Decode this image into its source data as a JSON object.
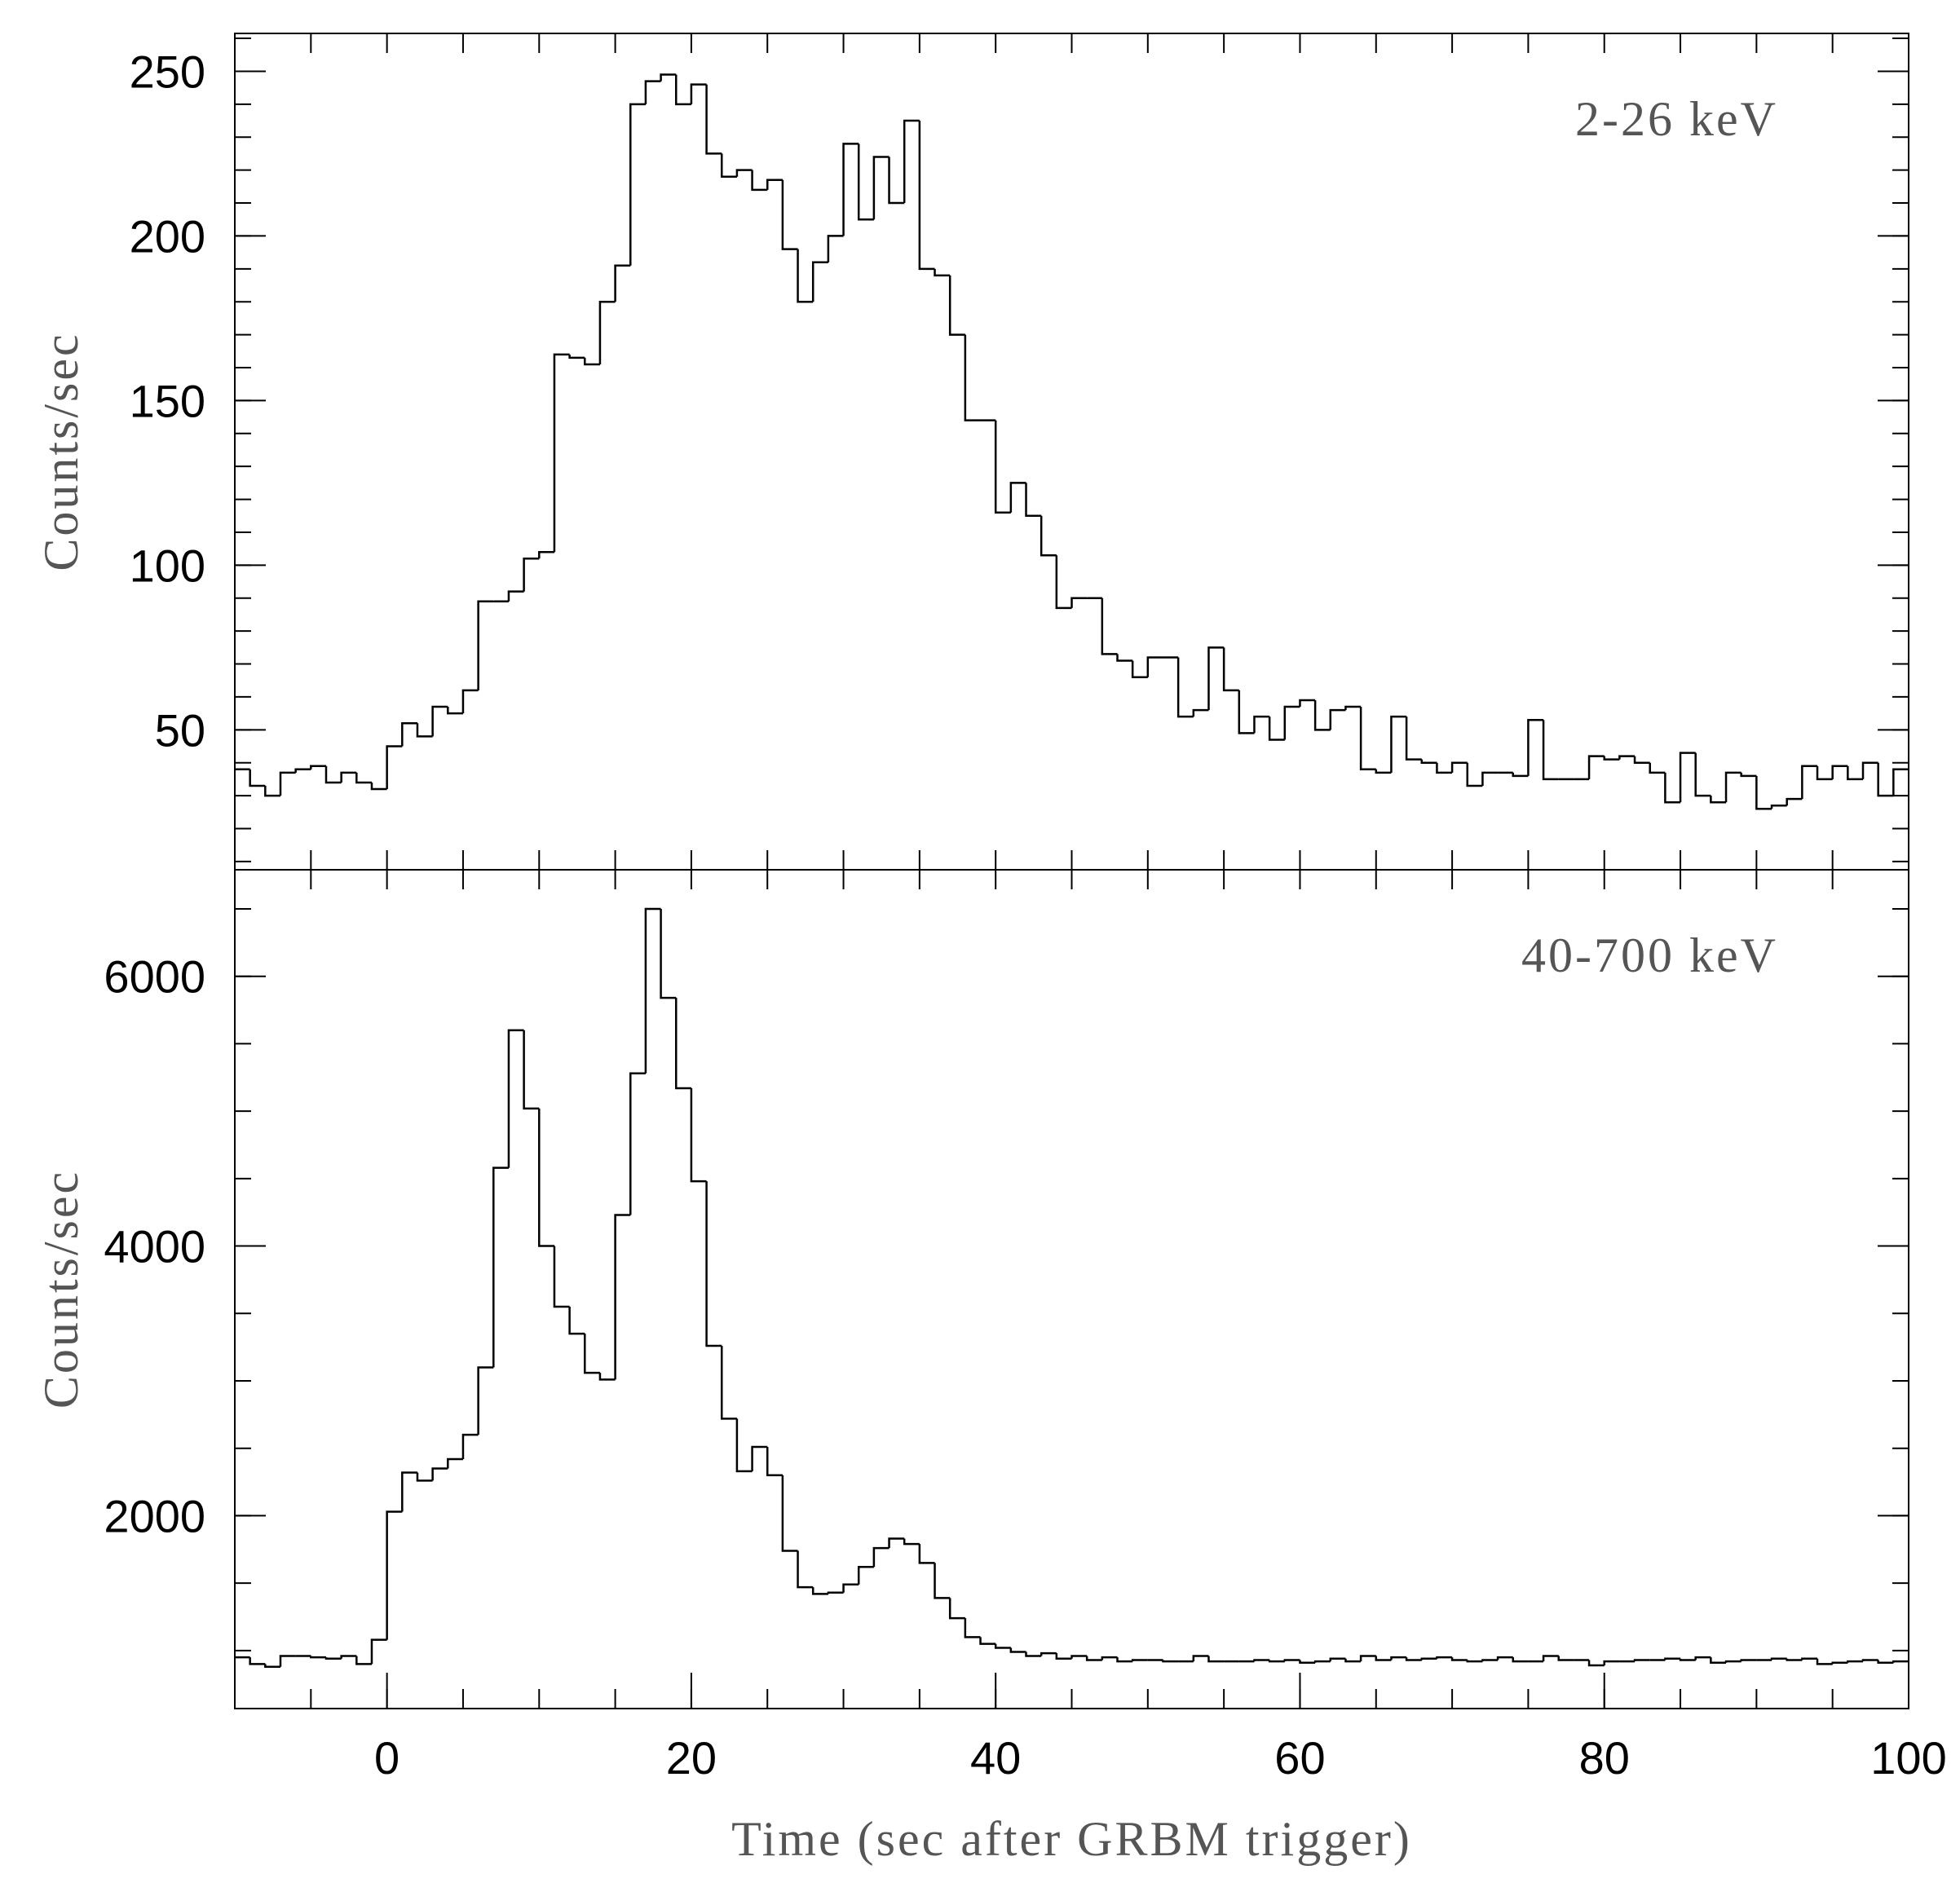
{
  "chart_data": [
    {
      "type": "histogram",
      "annotation": "2-26 keV",
      "ylabel": "Counts/sec",
      "bins": [
        -10,
        -9,
        -8,
        -7,
        -6,
        -5,
        -4,
        -3,
        -2,
        -1,
        0,
        1,
        2,
        3,
        4,
        5,
        6,
        7,
        8,
        9,
        10,
        11,
        12,
        13,
        14,
        15,
        16,
        17,
        18,
        19,
        20,
        21,
        22,
        23,
        24,
        25,
        26,
        27,
        28,
        29,
        30,
        31,
        32,
        33,
        34,
        35,
        36,
        37,
        38,
        39,
        40,
        41,
        42,
        43,
        44,
        45,
        46,
        47,
        48,
        49,
        50,
        51,
        52,
        53,
        54,
        55,
        56,
        57,
        58,
        59,
        60,
        61,
        62,
        63,
        64,
        65,
        66,
        67,
        68,
        69,
        70,
        71,
        72,
        73,
        74,
        75,
        76,
        77,
        78,
        79,
        80,
        81,
        82,
        83,
        84,
        85,
        86,
        87,
        88,
        89,
        90,
        91,
        92,
        93,
        94,
        95,
        96,
        97,
        98,
        99,
        100
      ],
      "values": [
        38,
        33,
        30,
        37,
        38,
        39,
        34,
        37,
        34,
        32,
        45,
        52,
        48,
        57,
        55,
        62,
        89,
        89,
        92,
        102,
        104,
        164,
        163,
        161,
        180,
        191,
        240,
        247,
        249,
        240,
        246,
        225,
        218,
        220,
        214,
        217,
        196,
        180,
        192,
        200,
        228,
        205,
        224,
        210,
        235,
        190,
        188,
        170,
        144,
        144,
        116,
        125,
        115,
        103,
        87,
        90,
        90,
        73,
        71,
        66,
        72,
        72,
        54,
        56,
        75,
        62,
        49,
        54,
        47,
        57,
        59,
        50,
        56,
        57,
        38,
        37,
        54,
        41,
        40,
        37,
        40,
        33,
        37,
        37,
        36,
        53,
        35,
        35,
        35,
        42,
        41,
        42,
        40,
        37,
        28,
        43,
        30,
        28,
        37,
        36,
        26,
        27,
        29,
        39,
        35,
        39,
        35,
        40,
        30,
        38
      ],
      "color": "#000000",
      "xlim": [
        -10,
        100
      ],
      "ylim": [
        7.5,
        261.5
      ],
      "yticks": [
        50,
        100,
        150,
        200,
        250
      ],
      "yminorticks": [
        10,
        20,
        30,
        40,
        50,
        60,
        70,
        80,
        90,
        100,
        110,
        120,
        130,
        140,
        150,
        160,
        170,
        180,
        190,
        200,
        210,
        220,
        230,
        240,
        250,
        260
      ],
      "xminorticks": [
        -5,
        0,
        5,
        10,
        15,
        20,
        25,
        30,
        35,
        40,
        45,
        50,
        55,
        60,
        65,
        70,
        75,
        80,
        85,
        90,
        95,
        100
      ]
    },
    {
      "type": "histogram",
      "annotation": "40-700 keV",
      "ylabel": "Counts/sec",
      "xlabel": "Time (sec after GRBM trigger)",
      "bins": [
        -10,
        -9,
        -8,
        -7,
        -6,
        -5,
        -4,
        -3,
        -2,
        -1,
        0,
        1,
        2,
        3,
        4,
        5,
        6,
        7,
        8,
        9,
        10,
        11,
        12,
        13,
        14,
        15,
        16,
        17,
        18,
        19,
        20,
        21,
        22,
        23,
        24,
        25,
        26,
        27,
        28,
        29,
        30,
        31,
        32,
        33,
        34,
        35,
        36,
        37,
        38,
        39,
        40,
        41,
        42,
        43,
        44,
        45,
        46,
        47,
        48,
        49,
        50,
        51,
        52,
        53,
        54,
        55,
        56,
        57,
        58,
        59,
        60,
        61,
        62,
        63,
        64,
        65,
        66,
        67,
        68,
        69,
        70,
        71,
        72,
        73,
        74,
        75,
        76,
        77,
        78,
        79,
        80,
        81,
        82,
        83,
        84,
        85,
        86,
        87,
        88,
        89,
        90,
        91,
        92,
        93,
        94,
        95,
        96,
        97,
        98,
        99,
        100
      ],
      "values": [
        950,
        900,
        880,
        960,
        960,
        950,
        940,
        960,
        900,
        1080,
        2030,
        2320,
        2260,
        2350,
        2420,
        2600,
        3100,
        4580,
        5600,
        5020,
        4000,
        3550,
        3350,
        3060,
        3010,
        4230,
        5280,
        6500,
        5840,
        5170,
        4480,
        3260,
        2720,
        2330,
        2510,
        2300,
        1740,
        1470,
        1420,
        1430,
        1490,
        1620,
        1760,
        1830,
        1790,
        1650,
        1390,
        1240,
        1100,
        1050,
        1020,
        990,
        960,
        980,
        940,
        960,
        930,
        950,
        920,
        930,
        930,
        920,
        920,
        960,
        920,
        920,
        920,
        930,
        920,
        930,
        910,
        920,
        940,
        920,
        960,
        930,
        950,
        930,
        940,
        950,
        930,
        920,
        930,
        950,
        920,
        920,
        960,
        930,
        930,
        890,
        920,
        920,
        930,
        930,
        940,
        930,
        950,
        910,
        920,
        930,
        930,
        940,
        930,
        940,
        900,
        910,
        920,
        930,
        910,
        920
      ],
      "color": "#000000",
      "xlim": [
        -10,
        100
      ],
      "ylim": [
        570,
        6790
      ],
      "xticks": [
        0,
        20,
        40,
        60,
        80,
        100
      ],
      "yticks": [
        2000,
        4000,
        6000
      ],
      "yminorticks": [
        1000,
        1500,
        2000,
        2500,
        3000,
        3500,
        4000,
        4500,
        5000,
        5500,
        6000,
        6500
      ],
      "xminorticks": [
        -5,
        0,
        5,
        10,
        15,
        20,
        25,
        30,
        35,
        40,
        45,
        50,
        55,
        60,
        65,
        70,
        75,
        80,
        85,
        90,
        95,
        100
      ]
    }
  ]
}
